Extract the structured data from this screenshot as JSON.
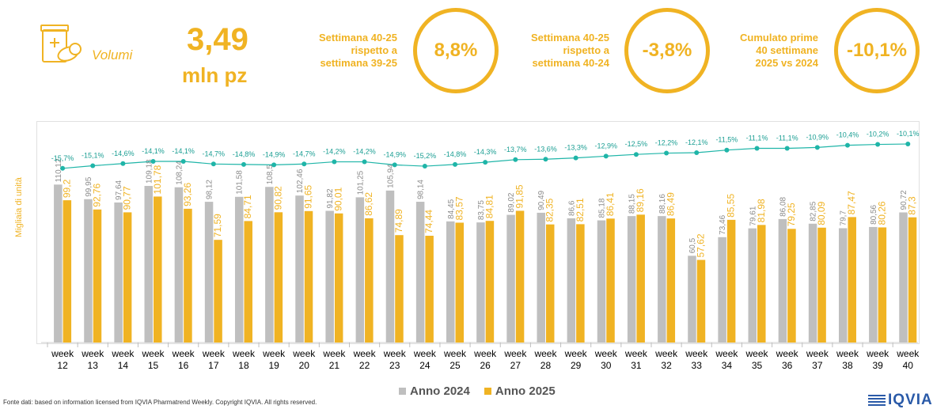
{
  "header": {
    "icon": "pill-bottle-icon",
    "volumi_label": "Volumi",
    "big_value": "3,49",
    "big_unit": "mln pz",
    "accent_color": "#f0b323",
    "kpis": [
      {
        "label_lines": [
          "Settimana 40-25",
          "rispetto a",
          "settimana 39-25"
        ],
        "value": "8,8%"
      },
      {
        "label_lines": [
          "Settimana 40-25",
          "rispetto a",
          "settimana 40-24"
        ],
        "value": "-3,8%"
      },
      {
        "label_lines": [
          "Cumulato prime",
          "40 settimane",
          "2025 vs 2024"
        ],
        "value": "-10,1%"
      }
    ]
  },
  "chart_data": {
    "type": "bar",
    "ylabel": "Migliaia di unità",
    "categories": [
      [
        "week",
        "12"
      ],
      [
        "week",
        "13"
      ],
      [
        "week",
        "14"
      ],
      [
        "week",
        "15"
      ],
      [
        "week",
        "16"
      ],
      [
        "week",
        "17"
      ],
      [
        "week",
        "18"
      ],
      [
        "week",
        "19"
      ],
      [
        "week",
        "20"
      ],
      [
        "week",
        "21"
      ],
      [
        "week",
        "22"
      ],
      [
        "week",
        "23"
      ],
      [
        "week",
        "24"
      ],
      [
        "week",
        "25"
      ],
      [
        "week",
        "26"
      ],
      [
        "week",
        "27"
      ],
      [
        "week",
        "28"
      ],
      [
        "week",
        "29"
      ],
      [
        "week",
        "30"
      ],
      [
        "week",
        "31"
      ],
      [
        "week",
        "32"
      ],
      [
        "week",
        "33"
      ],
      [
        "week",
        "34"
      ],
      [
        "week",
        "35"
      ],
      [
        "week",
        "36"
      ],
      [
        "week",
        "37"
      ],
      [
        "week",
        "38"
      ],
      [
        "week",
        "39"
      ],
      [
        "week",
        "40"
      ]
    ],
    "series": [
      {
        "name": "Anno 2024",
        "color": "#bfbfbf",
        "labels": [
          "110,12",
          "99,95",
          "97,64",
          "109,18",
          "108,24",
          "98,12",
          "101,58",
          "108,5",
          "102,46",
          "91,82",
          "101,25",
          "105,94",
          "98,14",
          "84,45",
          "83,75",
          "89,02",
          "90,49",
          "86,6",
          "85,18",
          "88,15",
          "88,16",
          "60,5",
          "73,46",
          "79,61",
          "86,08",
          "82,85",
          "79,7",
          "80,56",
          "90,72"
        ],
        "values": [
          110.12,
          99.95,
          97.64,
          109.18,
          108.24,
          98.12,
          101.58,
          108.5,
          102.46,
          91.82,
          101.25,
          105.94,
          98.14,
          84.45,
          83.75,
          89.02,
          90.49,
          86.6,
          85.18,
          88.15,
          88.16,
          60.5,
          73.46,
          79.61,
          86.08,
          82.85,
          79.7,
          80.56,
          90.72
        ]
      },
      {
        "name": "Anno 2025",
        "color": "#f0b323",
        "labels": [
          "99,2",
          "92,76",
          "90,77",
          "101,78",
          "93,26",
          "71,59",
          "84,71",
          "90,82",
          "91,65",
          "90,01",
          "86,62",
          "74,89",
          "74,44",
          "83,57",
          "84,81",
          "91,85",
          "82,35",
          "82,51",
          "86,41",
          "89,16",
          "86,49",
          "57,62",
          "85,55",
          "81,98",
          "79,25",
          "80,09",
          "87,47",
          "80,26",
          "87,3"
        ],
        "values": [
          99.2,
          92.76,
          90.77,
          101.78,
          93.26,
          71.59,
          84.71,
          90.82,
          91.65,
          90.01,
          86.62,
          74.89,
          74.44,
          83.57,
          84.81,
          91.85,
          82.35,
          82.51,
          86.41,
          89.16,
          86.49,
          57.62,
          85.55,
          81.98,
          79.25,
          80.09,
          87.47,
          80.26,
          87.3
        ]
      }
    ],
    "line": {
      "color": "#1fb5a8",
      "labels": [
        "-15,7%",
        "-15,1%",
        "-14,6%",
        "-14,1%",
        "-14,1%",
        "-14,7%",
        "-14,8%",
        "-14,9%",
        "-14,7%",
        "-14,2%",
        "-14,2%",
        "-14,9%",
        "-15,2%",
        "-14,8%",
        "-14,3%",
        "-13,7%",
        "-13,6%",
        "-13,3%",
        "-12,9%",
        "-12,5%",
        "-12,2%",
        "-12,1%",
        "-11,5%",
        "-11,1%",
        "-11,1%",
        "-10,9%",
        "-10,4%",
        "-10,2%",
        "-10,1%"
      ],
      "values": [
        -15.7,
        -15.1,
        -14.6,
        -14.1,
        -14.1,
        -14.7,
        -14.8,
        -14.9,
        -14.7,
        -14.2,
        -14.2,
        -14.9,
        -15.2,
        -14.8,
        -14.3,
        -13.7,
        -13.6,
        -13.3,
        -12.9,
        -12.5,
        -12.2,
        -12.1,
        -11.5,
        -11.1,
        -11.1,
        -10.9,
        -10.4,
        -10.2,
        -10.1
      ]
    },
    "ylim": [
      0,
      150
    ],
    "legend_placement": "bottom"
  },
  "legend": {
    "items": [
      {
        "label": "Anno 2024",
        "color": "#bfbfbf"
      },
      {
        "label": "Anno 2025",
        "color": "#f0b323"
      }
    ]
  },
  "footer": {
    "source": "Fonte dati: based on information licensed from IQVIA Pharmatrend Weekly. Copyright IQVIA. All rights reserved."
  },
  "logo": {
    "text": "IQVIA",
    "color": "#2a5aa8"
  }
}
